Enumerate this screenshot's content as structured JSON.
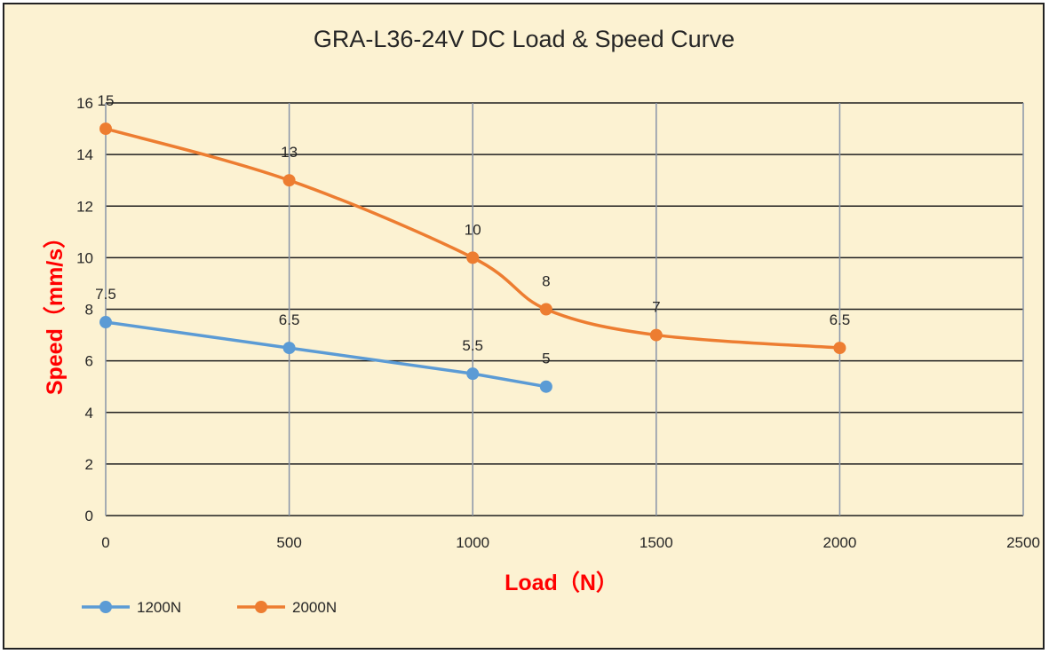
{
  "chart_data": {
    "type": "line",
    "title": "GRA-L36-24V DC Load & Speed Curve",
    "xlabel": "Load（N）",
    "ylabel": "Speed（mm/s）",
    "xlim": [
      0,
      2500
    ],
    "ylim": [
      0,
      16
    ],
    "xticks": [
      0,
      500,
      1000,
      1500,
      2000,
      2500
    ],
    "yticks": [
      0,
      2,
      4,
      6,
      8,
      10,
      12,
      14,
      16
    ],
    "grid": true,
    "legend": "bottom-left",
    "series": [
      {
        "name": "1200N",
        "color": "#5b9bd5",
        "smooth": false,
        "x": [
          0,
          500,
          1000,
          1200
        ],
        "y": [
          7.5,
          6.5,
          5.5,
          5
        ],
        "labels": [
          "7.5",
          "6.5",
          "5.5",
          "5"
        ]
      },
      {
        "name": "2000N",
        "color": "#ed7d31",
        "smooth": true,
        "x": [
          0,
          500,
          1000,
          1200,
          1500,
          2000
        ],
        "y": [
          15,
          13,
          10,
          8,
          7,
          6.5
        ],
        "labels": [
          "15",
          "13",
          "10",
          "8",
          "7",
          "6.5"
        ]
      }
    ]
  }
}
